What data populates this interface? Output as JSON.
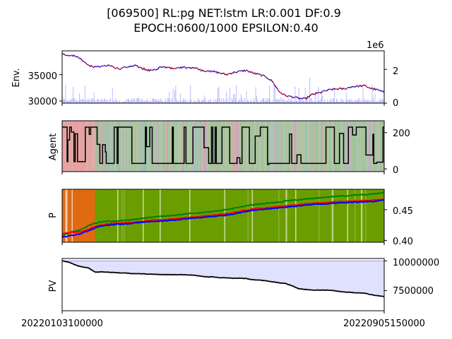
{
  "figure": {
    "title_line1": "[069500] RL:pg NET:lstm LR:0.001 DF:0.9",
    "title_line2": "EPOCH:0600/1000 EPSILON:0.40"
  },
  "chart_data": [
    {
      "type": "line",
      "ylabel": "Env.",
      "left_yticks": [
        "35000",
        "30000"
      ],
      "left_ylim": [
        29600,
        39500
      ],
      "right_yticks": [
        "2",
        "0"
      ],
      "right_ylim": [
        0,
        3.1
      ],
      "offset_text": "1e6",
      "series": [
        {
          "values": [
            39000,
            38600,
            38500,
            37800,
            36700,
            36400,
            36600,
            36800,
            36300,
            36100,
            36500,
            36700,
            36300,
            35800,
            35900,
            36400,
            36400,
            36200,
            36400,
            36300,
            36300,
            35900,
            35600,
            35600,
            35300,
            35000,
            35400,
            35600,
            35800,
            35300,
            35000,
            34600,
            33700,
            31800,
            31000,
            30800,
            30500,
            30400,
            31200,
            31500,
            31900,
            32200,
            32300,
            32300,
            32700,
            32800,
            32900,
            32400,
            32100,
            31600
          ]
        }
      ]
    },
    {
      "type": "line",
      "ylabel": "Agent",
      "right_yticks": [
        "200",
        "0"
      ],
      "ylim": [
        -15,
        265
      ]
    },
    {
      "type": "line",
      "ylabel": "P",
      "right_yticks": [
        "0.45",
        "0.40"
      ],
      "ylim": [
        0.397,
        0.483
      ],
      "series": [
        {
          "color": "#008000",
          "values": [
            0.407,
            0.412,
            0.415,
            0.418,
            0.424,
            0.428,
            0.43,
            0.431,
            0.431,
            0.432,
            0.433,
            0.434,
            0.436,
            0.437,
            0.438,
            0.439,
            0.44,
            0.441,
            0.442,
            0.443,
            0.444,
            0.445,
            0.446,
            0.447,
            0.448,
            0.45,
            0.452,
            0.454,
            0.456,
            0.458,
            0.459,
            0.46,
            0.461,
            0.462,
            0.464,
            0.465,
            0.466,
            0.467,
            0.468,
            0.469,
            0.47,
            0.471,
            0.472,
            0.472,
            0.473,
            0.474,
            0.474,
            0.475,
            0.476,
            0.478
          ]
        },
        {
          "color": "#ff0000",
          "values": [
            0.411,
            0.412,
            0.413,
            0.414,
            0.418,
            0.422,
            0.425,
            0.427,
            0.428,
            0.428,
            0.429,
            0.43,
            0.431,
            0.432,
            0.433,
            0.433,
            0.434,
            0.435,
            0.436,
            0.437,
            0.438,
            0.439,
            0.44,
            0.441,
            0.442,
            0.443,
            0.445,
            0.447,
            0.449,
            0.451,
            0.452,
            0.453,
            0.454,
            0.455,
            0.456,
            0.457,
            0.458,
            0.459,
            0.46,
            0.461,
            0.461,
            0.462,
            0.463,
            0.463,
            0.464,
            0.464,
            0.465,
            0.465,
            0.466,
            0.467
          ]
        },
        {
          "color": "#0000ff",
          "values": [
            0.405,
            0.407,
            0.409,
            0.411,
            0.416,
            0.42,
            0.423,
            0.425,
            0.426,
            0.426,
            0.427,
            0.428,
            0.429,
            0.43,
            0.431,
            0.431,
            0.432,
            0.433,
            0.434,
            0.435,
            0.436,
            0.437,
            0.438,
            0.439,
            0.44,
            0.441,
            0.443,
            0.445,
            0.447,
            0.449,
            0.45,
            0.451,
            0.452,
            0.453,
            0.454,
            0.455,
            0.456,
            0.457,
            0.458,
            0.459,
            0.459,
            0.46,
            0.461,
            0.461,
            0.462,
            0.462,
            0.463,
            0.463,
            0.464,
            0.466
          ]
        }
      ]
    },
    {
      "type": "area",
      "ylabel": "PV",
      "right_yticks": [
        "10000000",
        "7500000"
      ],
      "ylim": [
        5800000,
        10200000
      ],
      "fill_color": "#e0e0ff",
      "series": [
        {
          "color": "#000000",
          "values": [
            10000000,
            9900000,
            9650000,
            9500000,
            9400000,
            9050000,
            9070000,
            9040000,
            9030000,
            8980000,
            8960000,
            8920000,
            8920000,
            8880000,
            8870000,
            8850000,
            8840000,
            8840000,
            8840000,
            8820000,
            8800000,
            8720000,
            8660000,
            8650000,
            8580000,
            8580000,
            8530000,
            8540000,
            8510000,
            8420000,
            8380000,
            8320000,
            8230000,
            8160000,
            8090000,
            7900000,
            7650000,
            7600000,
            7540000,
            7540000,
            7540000,
            7520000,
            7440000,
            7380000,
            7350000,
            7300000,
            7290000,
            7150000,
            7070000,
            6980000
          ]
        }
      ]
    }
  ],
  "x_axis": {
    "tick_labels": [
      "20220103100000",
      "20220905150000"
    ]
  }
}
